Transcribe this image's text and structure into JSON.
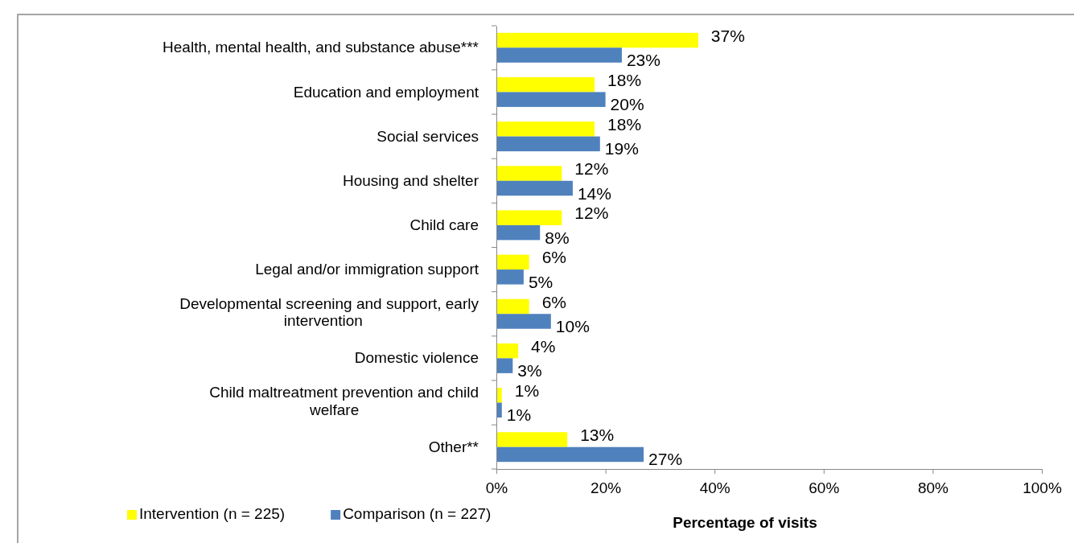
{
  "chart_data": {
    "type": "bar",
    "orientation": "horizontal",
    "xlabel": "Percentage of visits",
    "categories": [
      "Health, mental health, and substance abuse***",
      "Education and employment",
      "Social services",
      "Housing and shelter",
      "Child care",
      "Legal and/or immigration support",
      "Developmental screening and support, early intervention",
      "Domestic violence",
      "Child maltreatment prevention and child welfare",
      "Other**"
    ],
    "series": [
      {
        "name": "Intervention (n = 225)",
        "color": "#ffff00",
        "values": [
          37,
          18,
          18,
          12,
          12,
          6,
          6,
          4,
          1,
          13
        ],
        "value_labels": [
          "37%",
          "18%",
          "18%",
          "12%",
          "12%",
          "6%",
          "6%",
          "4%",
          "1%",
          "13%"
        ]
      },
      {
        "name": "Comparison (n = 227)",
        "color": "#4f81bd",
        "values": [
          23,
          20,
          19,
          14,
          8,
          5,
          10,
          3,
          1,
          27
        ],
        "value_labels": [
          "23%",
          "20%",
          "19%",
          "14%",
          "8%",
          "5%",
          "10%",
          "3%",
          "1%",
          "27%"
        ]
      }
    ],
    "xlim": [
      0,
      100
    ],
    "xticks": [
      {
        "value": 0,
        "label": "0%"
      },
      {
        "value": 20,
        "label": "20%"
      },
      {
        "value": 40,
        "label": "40%"
      },
      {
        "value": 60,
        "label": "60%"
      },
      {
        "value": 80,
        "label": "80%"
      },
      {
        "value": 100,
        "label": "100%"
      }
    ],
    "grid": false,
    "legend": "bottom left"
  }
}
